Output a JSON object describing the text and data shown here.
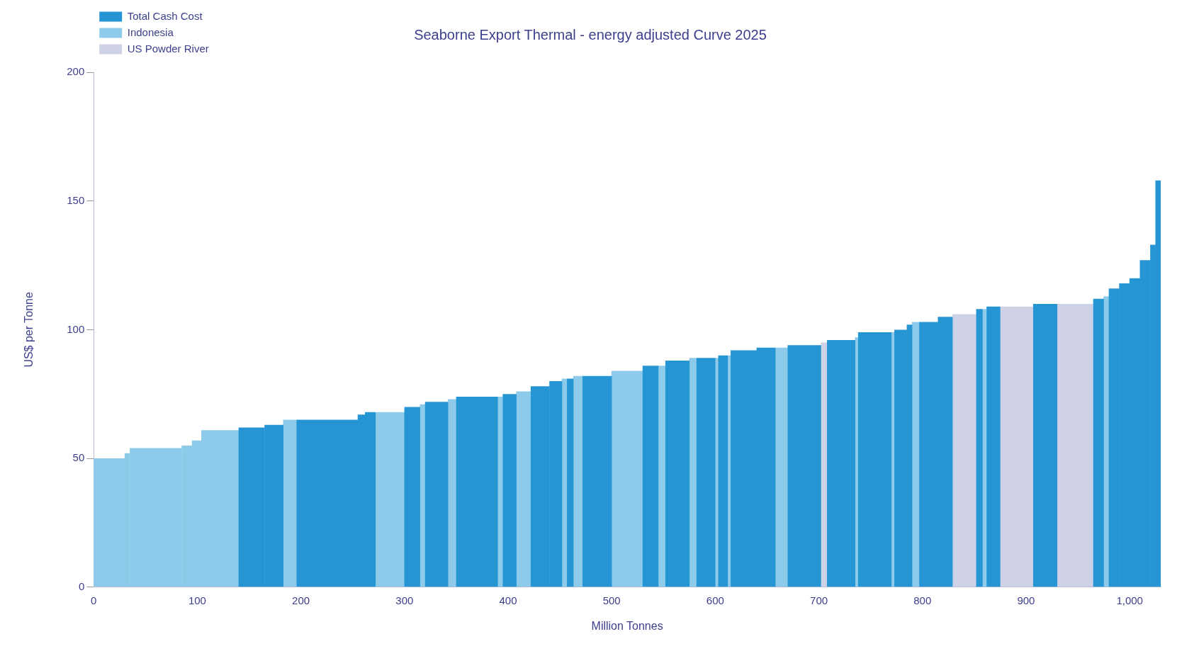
{
  "chart_data": {
    "type": "histogram",
    "title": "Seaborne Export Thermal - energy adjusted Curve 2025",
    "xlabel": "Million Tonnes",
    "ylabel": "US$ per Tonne",
    "bins": [
      0,
      30,
      35,
      85,
      95,
      104,
      140,
      165,
      183,
      196,
      255,
      262,
      272,
      300,
      315,
      320,
      342,
      350,
      390,
      395,
      408,
      422,
      440,
      452,
      457,
      463,
      472,
      500,
      530,
      545,
      552,
      575,
      582,
      600,
      603,
      612,
      615,
      640,
      658,
      670,
      702,
      708,
      735,
      738,
      770,
      773,
      785,
      790,
      797,
      815,
      829,
      852,
      858,
      862,
      875,
      907,
      930,
      965,
      975,
      980,
      990,
      1000,
      1010,
      1020,
      1025,
      1030
    ],
    "series": [
      {
        "name": "Total Cash Cost",
        "color": "#2596d3",
        "values": [
          null,
          null,
          null,
          null,
          null,
          null,
          62,
          63,
          null,
          65,
          67,
          68,
          null,
          70,
          null,
          72,
          null,
          74,
          null,
          75,
          null,
          78,
          80,
          null,
          81,
          null,
          82,
          null,
          86,
          null,
          88,
          null,
          89,
          null,
          90,
          null,
          92,
          93,
          null,
          94,
          null,
          96,
          null,
          99,
          null,
          100,
          102,
          null,
          103,
          105,
          null,
          108,
          null,
          109,
          null,
          110,
          null,
          112,
          null,
          116,
          118,
          120,
          127,
          133,
          158
        ]
      },
      {
        "name": "Indonesia",
        "color": "#8ecbea",
        "values": [
          50,
          52,
          54,
          55,
          57,
          61,
          null,
          null,
          65,
          null,
          null,
          null,
          68,
          null,
          71,
          null,
          73,
          null,
          74,
          null,
          76,
          null,
          null,
          81,
          null,
          82,
          null,
          84,
          null,
          86,
          null,
          89,
          null,
          89,
          null,
          90,
          null,
          null,
          93,
          null,
          null,
          null,
          97,
          null,
          99,
          null,
          null,
          103,
          null,
          null,
          null,
          null,
          108,
          null,
          null,
          null,
          null,
          null,
          113,
          null,
          null,
          null,
          null,
          null,
          null
        ]
      },
      {
        "name": "US Powder River",
        "color": "#cfd1e6",
        "values": [
          null,
          null,
          null,
          null,
          null,
          null,
          null,
          null,
          null,
          null,
          null,
          null,
          null,
          null,
          null,
          null,
          null,
          null,
          null,
          null,
          null,
          null,
          null,
          null,
          null,
          null,
          null,
          null,
          null,
          null,
          null,
          null,
          null,
          null,
          null,
          null,
          null,
          null,
          null,
          null,
          95,
          null,
          null,
          null,
          null,
          null,
          null,
          null,
          null,
          null,
          106,
          null,
          null,
          null,
          109,
          null,
          110,
          null,
          null,
          null,
          null,
          null,
          null,
          null,
          null
        ]
      }
    ],
    "xlim": [
      0,
      1030
    ],
    "xticks": [
      0,
      100,
      200,
      300,
      400,
      500,
      600,
      700,
      800,
      900,
      {
        "value": 1000,
        "label": "1,000"
      }
    ],
    "ylim": [
      0,
      200
    ],
    "yticks": [
      0,
      50,
      100,
      150,
      200
    ],
    "grid": false,
    "legend": "top left"
  }
}
